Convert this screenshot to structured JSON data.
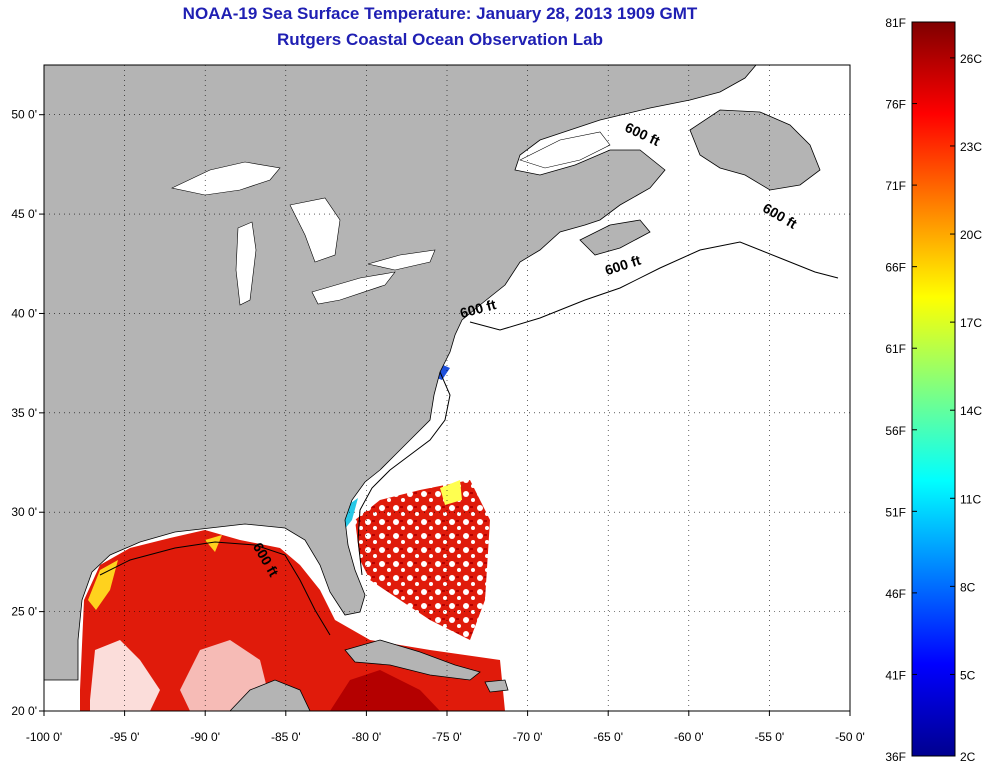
{
  "title": {
    "line1": "NOAA-19 Sea Surface Temperature:  January 28, 2013 1909 GMT",
    "line2": "Rutgers Coastal Ocean Observation Lab"
  },
  "map": {
    "lon_range": [
      -100,
      -50
    ],
    "lat_range": [
      20,
      52.5
    ],
    "x_ticks": [
      {
        "value": -100,
        "label": "-100 0'"
      },
      {
        "value": -95,
        "label": "-95 0'"
      },
      {
        "value": -90,
        "label": "-90 0'"
      },
      {
        "value": -85,
        "label": "-85 0'"
      },
      {
        "value": -80,
        "label": "-80 0'"
      },
      {
        "value": -75,
        "label": "-75 0'"
      },
      {
        "value": -70,
        "label": "-70 0'"
      },
      {
        "value": -65,
        "label": "-65 0'"
      },
      {
        "value": -60,
        "label": "-60 0'"
      },
      {
        "value": -55,
        "label": "-55 0'"
      },
      {
        "value": -50,
        "label": "-50 0'"
      }
    ],
    "y_ticks": [
      {
        "value": 50,
        "label": "50 0'"
      },
      {
        "value": 45,
        "label": "45 0'"
      },
      {
        "value": 40,
        "label": "40 0'"
      },
      {
        "value": 35,
        "label": "35 0'"
      },
      {
        "value": 30,
        "label": "30 0'"
      },
      {
        "value": 25,
        "label": "25 0'"
      },
      {
        "value": 20,
        "label": "20 0'"
      }
    ],
    "grid": true,
    "land_color": "#b4b4b4",
    "no_data_color": "#ffffff",
    "contour_labels": [
      {
        "text": "600 ft",
        "lon": -63,
        "lat": 48.8,
        "angle": 25
      },
      {
        "text": "600 ft",
        "lon": -54.5,
        "lat": 44.7,
        "angle": 30
      },
      {
        "text": "600 ft",
        "lon": -64,
        "lat": 42.2,
        "angle": -18
      },
      {
        "text": "600 ft",
        "lon": -73,
        "lat": 40.0,
        "angle": -15
      },
      {
        "text": "600 ft",
        "lon": -86.5,
        "lat": 27.5,
        "angle": 60
      }
    ]
  },
  "colorbar": {
    "fahrenheit_labels": [
      "81F",
      "76F",
      "71F",
      "66F",
      "61F",
      "56F",
      "51F",
      "46F",
      "41F",
      "36F"
    ],
    "celsius_labels": [
      "26C",
      "23C",
      "20C",
      "17C",
      "14C",
      "11C",
      "8C",
      "5C",
      "2C"
    ],
    "f_range": [
      36,
      81
    ],
    "stops": [
      "#7f0000",
      "#ff0000",
      "#ff8000",
      "#ffff00",
      "#80ff80",
      "#00ffff",
      "#0080ff",
      "#0000ff",
      "#00008f"
    ]
  }
}
